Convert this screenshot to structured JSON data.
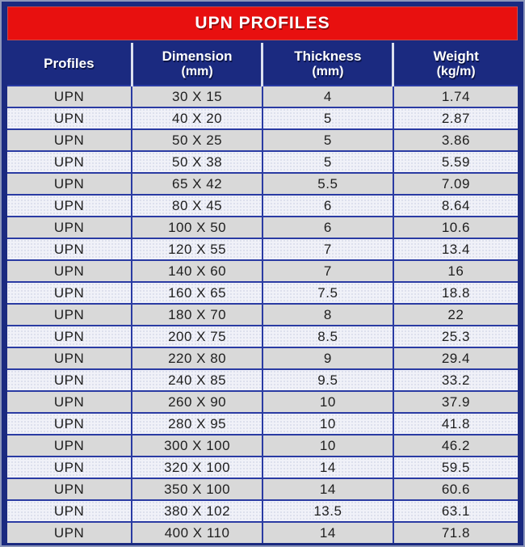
{
  "title": "UPN PROFILES",
  "columns": [
    {
      "label": "Profiles",
      "unit": ""
    },
    {
      "label": "Dimension",
      "unit": "(mm)"
    },
    {
      "label": "Thickness",
      "unit": "(mm)"
    },
    {
      "label": "Weight",
      "unit": "(kg/m)"
    }
  ],
  "rows": [
    {
      "profile": "UPN",
      "dimension": "30 X 15",
      "thickness": "4",
      "weight": "1.74"
    },
    {
      "profile": "UPN",
      "dimension": "40 X 20",
      "thickness": "5",
      "weight": "2.87"
    },
    {
      "profile": "UPN",
      "dimension": "50 X 25",
      "thickness": "5",
      "weight": "3.86"
    },
    {
      "profile": "UPN",
      "dimension": "50 X 38",
      "thickness": "5",
      "weight": "5.59"
    },
    {
      "profile": "UPN",
      "dimension": "65 X 42",
      "thickness": "5.5",
      "weight": "7.09"
    },
    {
      "profile": "UPN",
      "dimension": "80 X 45",
      "thickness": "6",
      "weight": "8.64"
    },
    {
      "profile": "UPN",
      "dimension": "100 X 50",
      "thickness": "6",
      "weight": "10.6"
    },
    {
      "profile": "UPN",
      "dimension": "120 X 55",
      "thickness": "7",
      "weight": "13.4"
    },
    {
      "profile": "UPN",
      "dimension": "140 X 60",
      "thickness": "7",
      "weight": "16"
    },
    {
      "profile": "UPN",
      "dimension": "160 X 65",
      "thickness": "7.5",
      "weight": "18.8"
    },
    {
      "profile": "UPN",
      "dimension": "180 X 70",
      "thickness": "8",
      "weight": "22"
    },
    {
      "profile": "UPN",
      "dimension": "200 X 75",
      "thickness": "8.5",
      "weight": "25.3"
    },
    {
      "profile": "UPN",
      "dimension": "220 X 80",
      "thickness": "9",
      "weight": "29.4"
    },
    {
      "profile": "UPN",
      "dimension": "240 X 85",
      "thickness": "9.5",
      "weight": "33.2"
    },
    {
      "profile": "UPN",
      "dimension": "260 X 90",
      "thickness": "10",
      "weight": "37.9"
    },
    {
      "profile": "UPN",
      "dimension": "280 X 95",
      "thickness": "10",
      "weight": "41.8"
    },
    {
      "profile": "UPN",
      "dimension": "300 X 100",
      "thickness": "10",
      "weight": "46.2"
    },
    {
      "profile": "UPN",
      "dimension": "320 X 100",
      "thickness": "14",
      "weight": "59.5"
    },
    {
      "profile": "UPN",
      "dimension": "350 X 100",
      "thickness": "14",
      "weight": "60.6"
    },
    {
      "profile": "UPN",
      "dimension": "380 X 102",
      "thickness": "13.5",
      "weight": "63.1"
    },
    {
      "profile": "UPN",
      "dimension": "400 X 110",
      "thickness": "14",
      "weight": "71.8"
    }
  ],
  "colors": {
    "banner_red": "#e8100f",
    "header_navy": "#1b2a80",
    "grid_line": "#2a3ba3",
    "row_gray": "#d9d9d9",
    "row_light": "#f0f1f8",
    "header_text": "#ffffff",
    "cell_text": "#1e1e1e"
  }
}
